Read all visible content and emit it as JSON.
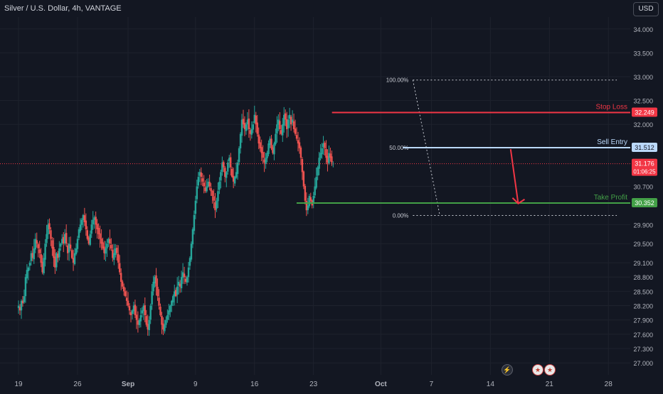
{
  "header": {
    "title": "Silver / U.S. Dollar, 4h, VANTAGE"
  },
  "currency_label": "USD",
  "colors": {
    "background": "#131722",
    "grid": "#1e222d",
    "up": "#26a69a",
    "down": "#ef5350",
    "text": "#b2b5be",
    "stop_loss": "#f23645",
    "sell_entry": "#bbd9fb",
    "take_profit": "#43a047",
    "fib": "#c9ccd4",
    "price_line": "#f23645"
  },
  "events": [
    {
      "icon": "lightning-icon"
    },
    {
      "icon": "us-flag-icon"
    },
    {
      "icon": "us-flag-icon"
    }
  ],
  "chart_data": {
    "type": "candlestick",
    "title": "Silver / U.S. Dollar, 4h, VANTAGE",
    "currency": "USD",
    "y_axis": {
      "min": 26.75,
      "max": 34.25,
      "ticks": [
        "34.000",
        "33.500",
        "33.000",
        "32.500",
        "32.000",
        "30.700",
        "29.900",
        "29.500",
        "29.100",
        "28.800",
        "28.500",
        "28.200",
        "27.900",
        "27.600",
        "27.300",
        "27.000"
      ],
      "grid": true
    },
    "x_axis": {
      "ticks": [
        {
          "label": "19",
          "x": 0
        },
        {
          "label": "26",
          "x": 7
        },
        {
          "label": "Sep",
          "x": 13
        },
        {
          "label": "9",
          "x": 21
        },
        {
          "label": "16",
          "x": 28
        },
        {
          "label": "23",
          "x": 35
        },
        {
          "label": "Oct",
          "x": 43
        },
        {
          "label": "7",
          "x": 49
        },
        {
          "label": "14",
          "x": 56
        },
        {
          "label": "21",
          "x": 63
        },
        {
          "label": "28",
          "x": 70
        }
      ],
      "x_min": -2.2,
      "x_max": 72.6
    },
    "current_price": {
      "value": 31.176,
      "label": "31.176",
      "countdown": "01:06:25"
    },
    "levels": [
      {
        "name": "Stop Loss",
        "value": 32.249,
        "label": "32.249",
        "x_start": 37.2,
        "color": "#f23645"
      },
      {
        "name": "Sell Entry",
        "value": 31.512,
        "label": "31.512",
        "x_start": 45.6,
        "color": "#bbd9fb"
      },
      {
        "name": "Take Profit",
        "value": 30.352,
        "label": "30.352",
        "x_start": 33.0,
        "color": "#43a047"
      }
    ],
    "fibonacci": [
      {
        "label": "100.00%",
        "value": 32.93
      },
      {
        "label": "50.00%",
        "value": 31.51
      },
      {
        "label": "0.00%",
        "value": 30.09
      }
    ],
    "fib_anchor": {
      "x_start": 46.8,
      "x_end": 71.0,
      "x_high": 46.8,
      "x_low": 50.0
    },
    "arrow": {
      "x_from": 58.4,
      "y_from": 31.48,
      "x_to": 59.3,
      "y_to": 30.34
    },
    "close_series": [
      28.2,
      28.1,
      28.3,
      28.25,
      28.4,
      28.8,
      28.95,
      29.0,
      29.1,
      29.3,
      29.2,
      29.4,
      29.6,
      29.5,
      29.4,
      29.3,
      29.1,
      28.9,
      29.2,
      29.5,
      29.7,
      29.9,
      29.8,
      29.6,
      29.4,
      29.2,
      29.0,
      29.3,
      29.2,
      29.4,
      29.5,
      29.6,
      29.5,
      29.7,
      29.5,
      29.3,
      29.5,
      29.4,
      29.2,
      29.1,
      29.3,
      29.4,
      29.6,
      29.8,
      29.9,
      30.0,
      30.1,
      29.95,
      29.8,
      29.6,
      29.5,
      29.7,
      29.9,
      30.0,
      30.05,
      29.9,
      29.8,
      29.7,
      29.6,
      29.5,
      29.4,
      29.3,
      29.4,
      29.5,
      29.6,
      29.5,
      29.4,
      29.2,
      29.3,
      29.4,
      29.3,
      29.1,
      28.9,
      28.7,
      28.6,
      28.5,
      28.4,
      28.3,
      28.2,
      28.1,
      28.0,
      28.1,
      28.2,
      28.0,
      27.9,
      27.8,
      27.9,
      28.0,
      28.1,
      28.2,
      28.0,
      27.8,
      27.7,
      27.9,
      28.2,
      28.5,
      28.7,
      28.8,
      28.6,
      28.4,
      28.2,
      28.0,
      27.8,
      27.7,
      27.8,
      27.9,
      28.0,
      28.1,
      28.2,
      28.3,
      28.4,
      28.5,
      28.4,
      28.6,
      28.7,
      28.6,
      28.8,
      28.9,
      28.8,
      28.7,
      28.8,
      29.0,
      29.2,
      29.5,
      29.8,
      30.1,
      30.4,
      30.7,
      30.9,
      31.0,
      30.9,
      30.8,
      30.7,
      30.6,
      30.7,
      30.8,
      30.7,
      30.6,
      30.5,
      30.4,
      30.2,
      30.4,
      30.6,
      30.8,
      31.0,
      31.2,
      31.1,
      30.9,
      31.0,
      31.2,
      31.3,
      31.1,
      30.9,
      30.8,
      30.9,
      31.0,
      31.2,
      31.5,
      31.8,
      32.1,
      32.0,
      31.9,
      32.0,
      32.1,
      31.9,
      31.8,
      31.9,
      32.0,
      32.2,
      32.0,
      31.8,
      31.6,
      31.5,
      31.4,
      31.3,
      31.2,
      31.3,
      31.4,
      31.6,
      31.7,
      31.5,
      31.4,
      31.6,
      31.8,
      32.0,
      32.1,
      31.9,
      31.8,
      32.0,
      32.2,
      32.1,
      31.9,
      32.1,
      32.2,
      32.0,
      32.1,
      31.9,
      31.8,
      31.7,
      31.6,
      31.5,
      31.3,
      31.0,
      30.7,
      30.4,
      30.2,
      30.3,
      30.5,
      30.4,
      30.3,
      30.5,
      30.7,
      30.9,
      31.1,
      31.3,
      31.4,
      31.5,
      31.6,
      31.5,
      31.3,
      31.2,
      31.4,
      31.3,
      31.2,
      31.18
    ],
    "x_first": 0.0,
    "x_step": 0.1667,
    "annotations": [
      "Stop Loss",
      "Sell Entry",
      "Take Profit"
    ]
  }
}
